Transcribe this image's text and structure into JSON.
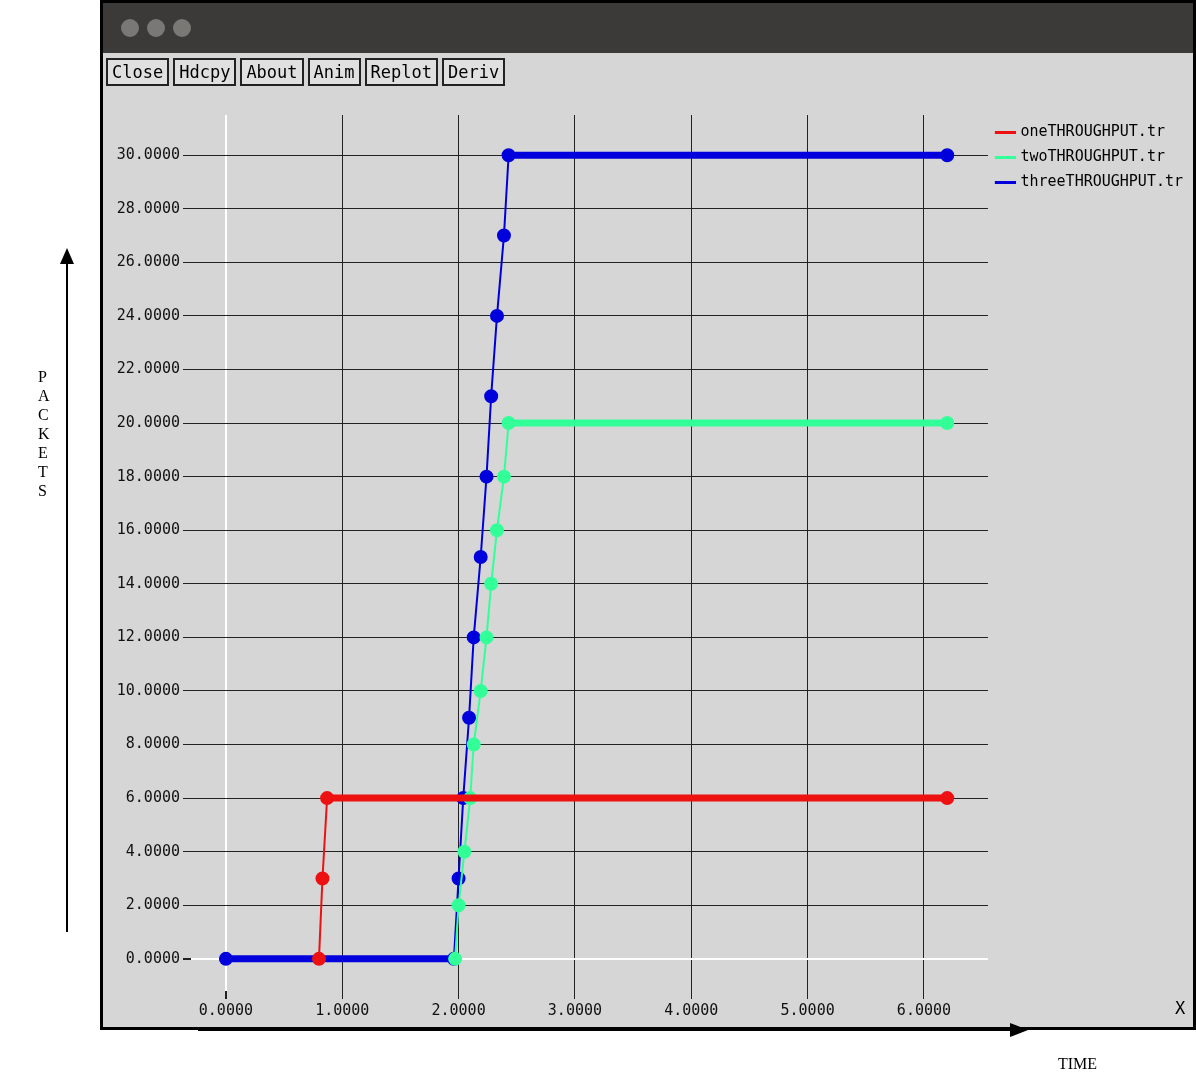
{
  "chart_data": {
    "type": "line",
    "xlabel": "TIME",
    "ylabel": "PACKETS",
    "annotations": [
      "Close",
      "Hdcpy",
      "About",
      "Anim",
      "Replot",
      "Deriv",
      "X"
    ],
    "xlim": [
      -0.3,
      6.55
    ],
    "ylim": [
      -1.2,
      31.5
    ],
    "xticks": [
      {
        "value": 0,
        "label": "0.0000"
      },
      {
        "value": 1,
        "label": "1.0000"
      },
      {
        "value": 2,
        "label": "2.0000"
      },
      {
        "value": 3,
        "label": "3.0000"
      },
      {
        "value": 4,
        "label": "4.0000"
      },
      {
        "value": 5,
        "label": "5.0000"
      },
      {
        "value": 6,
        "label": "6.0000"
      }
    ],
    "yticks": [
      {
        "value": 0,
        "label": "0.0000"
      },
      {
        "value": 2,
        "label": "2.0000"
      },
      {
        "value": 4,
        "label": "4.0000"
      },
      {
        "value": 6,
        "label": "6.0000"
      },
      {
        "value": 8,
        "label": "8.0000"
      },
      {
        "value": 10,
        "label": "10.0000"
      },
      {
        "value": 12,
        "label": "12.0000"
      },
      {
        "value": 14,
        "label": "14.0000"
      },
      {
        "value": 16,
        "label": "16.0000"
      },
      {
        "value": 18,
        "label": "18.0000"
      },
      {
        "value": 20,
        "label": "20.0000"
      },
      {
        "value": 22,
        "label": "22.0000"
      },
      {
        "value": 24,
        "label": "24.0000"
      },
      {
        "value": 26,
        "label": "26.0000"
      },
      {
        "value": 28,
        "label": "28.0000"
      },
      {
        "value": 30,
        "label": "30.0000"
      }
    ],
    "grid": true,
    "legend": "top right",
    "marker": "circle",
    "line_style": "solid",
    "series": [
      {
        "name": "oneTHROUGHPUT.tr",
        "color": "#ee1111",
        "x": [
          0.8,
          0.83,
          0.87,
          6.2
        ],
        "values": [
          0,
          3,
          6,
          6
        ]
      },
      {
        "name": "twoTHROUGHPUT.tr",
        "color": "#33ff99",
        "x": [
          1.97,
          2.0,
          2.05,
          2.1,
          2.13,
          2.19,
          2.24,
          2.28,
          2.33,
          2.39,
          2.43,
          6.2
        ],
        "values": [
          0,
          2,
          4,
          6,
          8,
          10,
          12,
          14,
          16,
          18,
          20,
          20
        ]
      },
      {
        "name": "threeTHROUGHPUT.tr",
        "color": "#0000dd",
        "x": [
          0,
          1.96,
          2.0,
          2.04,
          2.09,
          2.13,
          2.19,
          2.24,
          2.28,
          2.33,
          2.39,
          2.43,
          6.2
        ],
        "values": [
          0,
          0,
          3,
          6,
          9,
          12,
          15,
          18,
          21,
          24,
          27,
          30,
          30
        ]
      }
    ]
  }
}
